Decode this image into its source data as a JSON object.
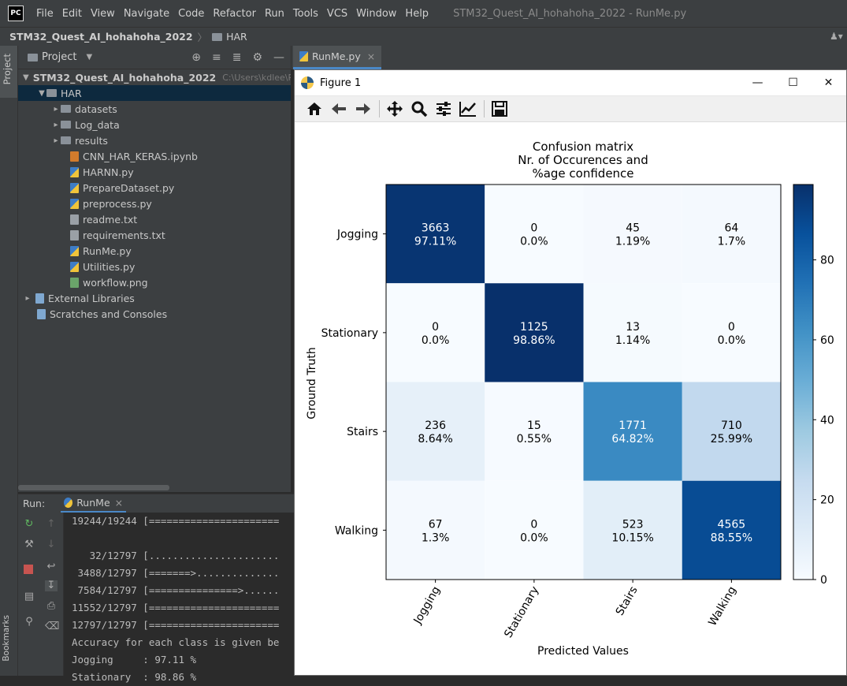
{
  "app": {
    "logo_text": "PC",
    "menu": [
      "File",
      "Edit",
      "View",
      "Navigate",
      "Code",
      "Refactor",
      "Run",
      "Tools",
      "VCS",
      "Window",
      "Help"
    ],
    "window_title": "STM32_Quest_AI_hohahoha_2022 - RunMe.py"
  },
  "navbar": {
    "project": "STM32_Quest_AI_hohahoha_2022",
    "folder": "HAR"
  },
  "left_strip": {
    "project_tab": "Project",
    "bookmarks_tab": "Bookmarks"
  },
  "project_panel": {
    "title": "Project",
    "root": {
      "label": "STM32_Quest_AI_hohahoha_2022",
      "path": "C:\\Users\\kdlee\\Py"
    },
    "har": "HAR",
    "folders": [
      "datasets",
      "Log_data",
      "results"
    ],
    "files": [
      {
        "name": "CNN_HAR_KERAS.ipynb",
        "type": "nb"
      },
      {
        "name": "HARNN.py",
        "type": "py"
      },
      {
        "name": "PrepareDataset.py",
        "type": "py"
      },
      {
        "name": "preprocess.py",
        "type": "py"
      },
      {
        "name": "readme.txt",
        "type": "txt"
      },
      {
        "name": "requirements.txt",
        "type": "txt"
      },
      {
        "name": "RunMe.py",
        "type": "py"
      },
      {
        "name": "Utilities.py",
        "type": "py"
      },
      {
        "name": "workflow.png",
        "type": "png"
      }
    ],
    "external_libraries": "External Libraries",
    "scratches": "Scratches and Consoles"
  },
  "editor": {
    "tab_label": "RunMe.py"
  },
  "run_panel": {
    "label": "Run:",
    "tab": "RunMe",
    "console_lines": [
      "19244/19244 [======================",
      "",
      "   32/12797 [......................",
      " 3488/12797 [=======>..............",
      " 7584/12797 [===============>......",
      "11552/12797 [======================",
      "12797/12797 [======================",
      "Accuracy for each class is given be",
      "Jogging     : 97.11 %",
      "Stationary  : 98.86 %"
    ]
  },
  "figure": {
    "title": "Figure 1",
    "toolbar": [
      "home-icon",
      "back-icon",
      "forward-icon",
      "pan-icon",
      "zoom-icon",
      "configure-subplots-icon",
      "edit-axis-icon",
      "save-icon"
    ],
    "colors": {
      "low": "#f7fbff",
      "high": "#08306b",
      "accent": "#4a88c7"
    }
  },
  "chart_data": {
    "type": "heatmap",
    "title": "Confusion matrix\nNr. of Occurences and\n%age confidence",
    "xlabel": "Predicted Values",
    "ylabel": "Ground Truth",
    "x_categories": [
      "Jogging",
      "Stationary",
      "Stairs",
      "Walking"
    ],
    "y_categories": [
      "Jogging",
      "Stationary",
      "Stairs",
      "Walking"
    ],
    "counts": [
      [
        3663,
        0,
        45,
        64
      ],
      [
        0,
        1125,
        13,
        0
      ],
      [
        236,
        15,
        1771,
        710
      ],
      [
        67,
        0,
        523,
        4565
      ]
    ],
    "percent_labels": [
      [
        "97.11%",
        "0.0%",
        "1.19%",
        "1.7%"
      ],
      [
        "0.0%",
        "98.86%",
        "1.14%",
        "0.0%"
      ],
      [
        "8.64%",
        "0.55%",
        "64.82%",
        "25.99%"
      ],
      [
        "1.3%",
        "0.0%",
        "10.15%",
        "88.55%"
      ]
    ],
    "percent_values": [
      [
        97.11,
        0.0,
        1.19,
        1.7
      ],
      [
        0.0,
        98.86,
        1.14,
        0.0
      ],
      [
        8.64,
        0.55,
        64.82,
        25.99
      ],
      [
        1.3,
        0.0,
        10.15,
        88.55
      ]
    ],
    "colorbar": {
      "ticks": [
        0,
        20,
        40,
        60,
        80
      ],
      "range": [
        0,
        98.86
      ],
      "colormap": "Blues"
    }
  }
}
